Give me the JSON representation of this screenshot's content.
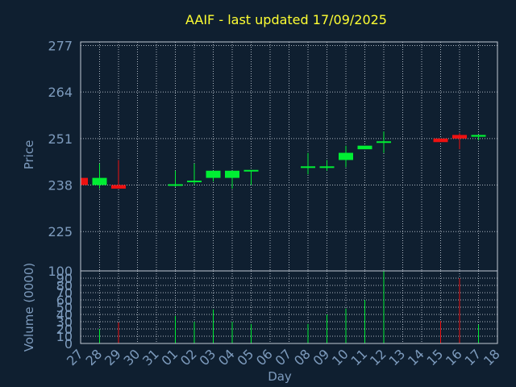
{
  "colors": {
    "background": "#0f1f30",
    "title": "#ffff33",
    "axis_text": "#7d9bbd",
    "up": "#00ee33",
    "down": "#ee1111"
  },
  "chart_data": {
    "type": "candlestick",
    "title": "AAIF - last updated 17/09/2025",
    "xlabel": "Day",
    "ylabel": "Price",
    "volume_label": "Volume (0000)",
    "x_ticks": [
      "27",
      "28",
      "29",
      "30",
      "31",
      "01",
      "02",
      "03",
      "04",
      "05",
      "06",
      "07",
      "08",
      "09",
      "10",
      "11",
      "12",
      "13",
      "14",
      "15",
      "16",
      "17",
      "18"
    ],
    "price_ticks": [
      225,
      238,
      251,
      264,
      277
    ],
    "price_range": [
      214,
      278
    ],
    "volume_ticks": [
      0,
      10,
      20,
      30,
      40,
      50,
      60,
      70,
      80,
      90,
      100
    ],
    "volume_range": [
      0,
      100
    ],
    "grid": true,
    "candles": [
      {
        "day": "27",
        "open": 240.0,
        "close": 238.0,
        "high": 240.0,
        "low": 238.0,
        "volume": 0
      },
      {
        "day": "28",
        "open": 238.0,
        "close": 240.0,
        "high": 244.0,
        "low": 237.0,
        "volume": 20
      },
      {
        "day": "29",
        "open": 238.0,
        "close": 237.0,
        "high": 245.0,
        "low": 237.0,
        "volume": 29
      },
      {
        "day": "01",
        "open": 238.0,
        "close": 238.0,
        "high": 242.0,
        "low": 237.5,
        "volume": 38
      },
      {
        "day": "02",
        "open": 239.0,
        "close": 239.0,
        "high": 244.0,
        "low": 238.0,
        "volume": 30
      },
      {
        "day": "03",
        "open": 240.0,
        "close": 242.0,
        "high": 242.0,
        "low": 239.0,
        "volume": 47
      },
      {
        "day": "04",
        "open": 240.0,
        "close": 242.0,
        "high": 242.0,
        "low": 237.0,
        "volume": 30
      },
      {
        "day": "05",
        "open": 242.0,
        "close": 242.0,
        "high": 242.0,
        "low": 238.0,
        "volume": 27
      },
      {
        "day": "08",
        "open": 243.0,
        "close": 243.0,
        "high": 247.0,
        "low": 241.0,
        "volume": 27
      },
      {
        "day": "09",
        "open": 243.0,
        "close": 243.0,
        "high": 245.0,
        "low": 242.0,
        "volume": 40
      },
      {
        "day": "10",
        "open": 245.0,
        "close": 247.0,
        "high": 249.0,
        "low": 243.0,
        "volume": 48
      },
      {
        "day": "11",
        "open": 248.0,
        "close": 249.0,
        "high": 249.0,
        "low": 248.0,
        "volume": 60
      },
      {
        "day": "12",
        "open": 250.0,
        "close": 250.0,
        "high": 253.0,
        "low": 247.0,
        "volume": 100
      },
      {
        "day": "15",
        "open": 251.0,
        "close": 250.0,
        "high": 251.0,
        "low": 250.0,
        "volume": 31
      },
      {
        "day": "16",
        "open": 252.0,
        "close": 251.0,
        "high": 252.5,
        "low": 248.0,
        "volume": 90
      },
      {
        "day": "17",
        "open": 251.5,
        "close": 252.0,
        "high": 252.0,
        "low": 250.5,
        "volume": 26
      }
    ]
  }
}
